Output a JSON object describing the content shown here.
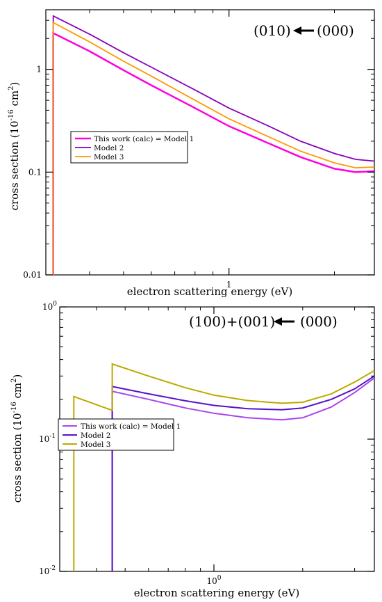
{
  "chart_data": [
    {
      "type": "line",
      "title": "",
      "annotation": "(010)←(000)",
      "annotation_parts": [
        "(010)",
        "(000)"
      ],
      "xlabel": "electron scattering energy (eV)",
      "ylabel": "cross section (10^-16 cm^2)",
      "ylabel_parts": [
        "cross section (10",
        "-16",
        " cm",
        "2",
        ")"
      ],
      "xscale": "log",
      "yscale": "log",
      "xlim": [
        0.3,
        2.6
      ],
      "ylim": [
        0.01,
        3.8
      ],
      "x_ticks": [
        {
          "value": 1,
          "label": "1"
        }
      ],
      "y_ticks": [
        {
          "value": 0.01,
          "label": "0.01"
        },
        {
          "value": 0.1,
          "label": "0.1"
        },
        {
          "value": 1,
          "label": "1"
        }
      ],
      "grid": false,
      "legend_position": "center-left",
      "series": [
        {
          "name": "This work (calc) = Model 1",
          "color": "#ff00dd",
          "x": [
            0.315,
            0.315,
            0.4,
            0.5,
            0.6,
            0.8,
            1.0,
            1.3,
            1.6,
            2.0,
            2.3,
            2.6
          ],
          "y": [
            0.01,
            2.25,
            1.5,
            0.98,
            0.7,
            0.42,
            0.28,
            0.19,
            0.14,
            0.108,
            0.1,
            0.102
          ]
        },
        {
          "name": "Model 2",
          "color": "#8800bb",
          "x": [
            0.315,
            0.315,
            0.4,
            0.5,
            0.6,
            0.8,
            1.0,
            1.3,
            1.6,
            2.0,
            2.3,
            2.6
          ],
          "y": [
            0.01,
            3.3,
            2.2,
            1.45,
            1.05,
            0.63,
            0.42,
            0.28,
            0.2,
            0.152,
            0.133,
            0.128
          ]
        },
        {
          "name": "Model 3",
          "color": "#ff9900",
          "x": [
            0.315,
            0.315,
            0.4,
            0.5,
            0.6,
            0.8,
            1.0,
            1.3,
            1.6,
            2.0,
            2.3,
            2.6
          ],
          "y": [
            0.01,
            2.85,
            1.85,
            1.2,
            0.86,
            0.5,
            0.33,
            0.22,
            0.16,
            0.123,
            0.11,
            0.112
          ]
        }
      ]
    },
    {
      "type": "line",
      "title": "",
      "annotation": "(100)+(001) ← (000)",
      "annotation_parts": [
        "(100)+(001)",
        "(000)"
      ],
      "xlabel": "electron scattering energy (eV)",
      "ylabel": "cross section (10^-16 cm^2)",
      "ylabel_parts": [
        "cross section (10",
        "-16",
        " cm",
        "2",
        ")"
      ],
      "xscale": "log",
      "yscale": "log",
      "xlim": [
        0.3,
        3.5
      ],
      "ylim": [
        0.01,
        1.0
      ],
      "x_ticks": [
        {
          "value": 1,
          "label": "10",
          "exponent": "0"
        }
      ],
      "y_ticks": [
        {
          "value": 0.01,
          "label": "10",
          "exponent": "-2"
        },
        {
          "value": 0.1,
          "label": "10",
          "exponent": "-1"
        },
        {
          "value": 1,
          "label": "10",
          "exponent": "0"
        }
      ],
      "grid": false,
      "legend_position": "center-left",
      "series": [
        {
          "name": "This work (calc) = Model 1",
          "color": "#aa44ee",
          "x": [
            0.452,
            0.452,
            0.6,
            0.8,
            1.0,
            1.3,
            1.7,
            2.0,
            2.5,
            3.0,
            3.5
          ],
          "y": [
            0.01,
            0.23,
            0.2,
            0.172,
            0.157,
            0.145,
            0.14,
            0.145,
            0.175,
            0.225,
            0.29
          ]
        },
        {
          "name": "Model 2",
          "color": "#5511cc",
          "x": [
            0.452,
            0.452,
            0.6,
            0.8,
            1.0,
            1.3,
            1.7,
            2.0,
            2.5,
            3.0,
            3.5
          ],
          "y": [
            0.01,
            0.25,
            0.22,
            0.195,
            0.18,
            0.17,
            0.167,
            0.172,
            0.2,
            0.24,
            0.3
          ]
        },
        {
          "name": "Model 3",
          "color": "#bbaa00",
          "x": [
            0.335,
            0.335,
            0.452,
            0.452,
            0.6,
            0.8,
            1.0,
            1.3,
            1.7,
            2.0,
            2.5,
            3.0,
            3.5
          ],
          "y": [
            0.01,
            0.21,
            0.165,
            0.37,
            0.3,
            0.245,
            0.215,
            0.196,
            0.187,
            0.19,
            0.22,
            0.27,
            0.33
          ]
        }
      ]
    }
  ]
}
